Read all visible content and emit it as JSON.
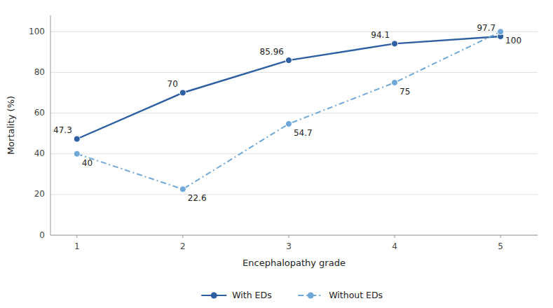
{
  "chart_data": {
    "type": "line",
    "xlabel": "Encephalopathy grade",
    "ylabel": "Mortality (%)",
    "x": [
      1,
      2,
      3,
      4,
      5
    ],
    "xlim": [
      0.75,
      5.35
    ],
    "xticks": [
      1,
      2,
      3,
      4,
      5
    ],
    "ylim": [
      0,
      108
    ],
    "yticks": [
      0,
      20,
      40,
      60,
      80,
      100
    ],
    "grid": true,
    "legend": "bottom",
    "data_labels": true,
    "series": [
      {
        "name": "With EDs",
        "color": "#2e5fa3",
        "line_style": "solid",
        "marker": "circle",
        "values": [
          47.3,
          70,
          85.96,
          94.1,
          97.7
        ]
      },
      {
        "name": "Without EDs",
        "color": "#6fa8d8",
        "line_style": "dashdot",
        "marker": "circle",
        "values": [
          40,
          22.6,
          54.7,
          75,
          100
        ]
      }
    ]
  }
}
